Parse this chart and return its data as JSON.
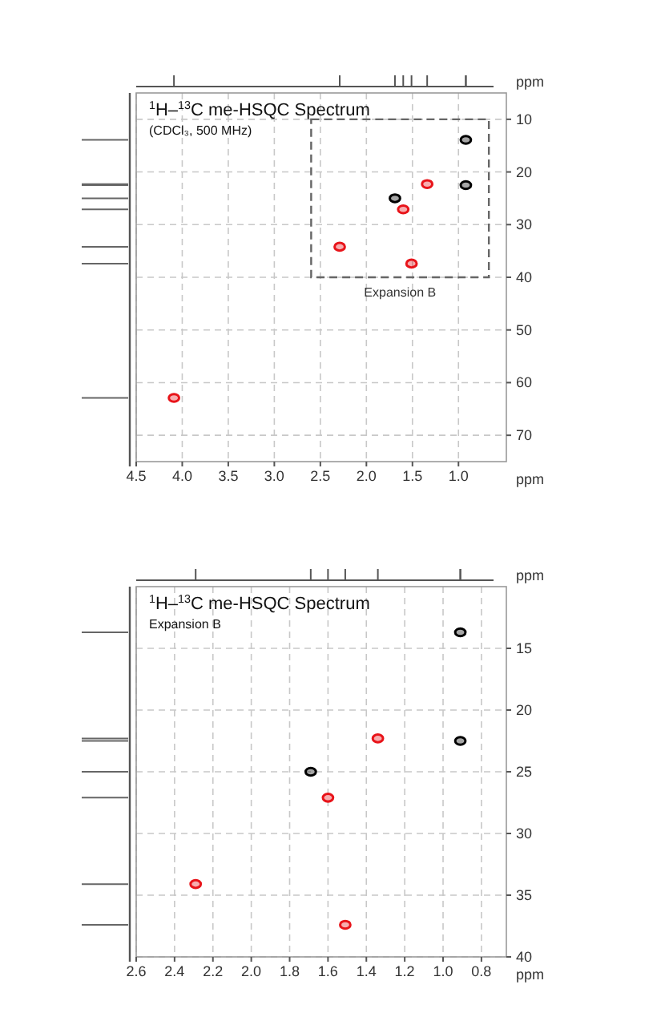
{
  "chart_data": [
    {
      "type": "scatter",
      "title": "$^{1}$H–$^{13}$C me-HSQC Spectrum",
      "subtitle": "(CDCl₃, 500 MHz)",
      "xlabel": "ppm",
      "ylabel": "ppm",
      "marker": "circle",
      "grid": true,
      "xlim": [
        4.5,
        0.48
      ],
      "ylim": [
        75,
        5
      ],
      "xticks": [
        4.5,
        {
          "value": 4,
          "label": "4.0"
        },
        3.5,
        {
          "value": 3,
          "label": "3.0"
        },
        2.5,
        {
          "value": 2,
          "label": "2.0"
        },
        1.5,
        {
          "value": 1,
          "label": "1.0"
        }
      ],
      "yticks": [
        10,
        20,
        30,
        40,
        50,
        60,
        70
      ],
      "annotations": [
        "Expansion B"
      ],
      "series": [
        {
          "color": "#000000",
          "x": [
            0.92,
            0.92,
            1.69
          ],
          "values": [
            13.9,
            22.5,
            25.0
          ]
        },
        {
          "color": "#e8141a",
          "x": [
            1.34,
            1.6,
            2.29,
            1.51,
            4.09
          ],
          "values": [
            22.3,
            27.1,
            34.2,
            37.4,
            62.9
          ]
        }
      ]
    },
    {
      "type": "scatter",
      "title": "$^{1}$H–$^{13}$C me-HSQC Spectrum",
      "subtitle": "Expansion B",
      "xlabel": "ppm",
      "ylabel": "ppm",
      "marker": "circle",
      "grid": true,
      "xlim": [
        2.6,
        0.67
      ],
      "ylim": [
        40,
        10
      ],
      "xticks": [
        2.6,
        2.4,
        2.2,
        {
          "value": 2,
          "label": "2.0"
        },
        1.8,
        1.6,
        1.4,
        1.2,
        {
          "value": 1,
          "label": "1.0"
        },
        0.8
      ],
      "yticks": [
        15,
        20,
        25,
        30,
        35,
        40
      ],
      "series": [
        {
          "color": "#000000",
          "x": [
            0.91,
            0.91,
            1.69
          ],
          "values": [
            13.7,
            22.5,
            25.0
          ]
        },
        {
          "color": "#e8141a",
          "x": [
            1.34,
            1.6,
            2.29,
            1.51
          ],
          "values": [
            22.3,
            27.1,
            34.1,
            37.4
          ]
        }
      ]
    }
  ]
}
